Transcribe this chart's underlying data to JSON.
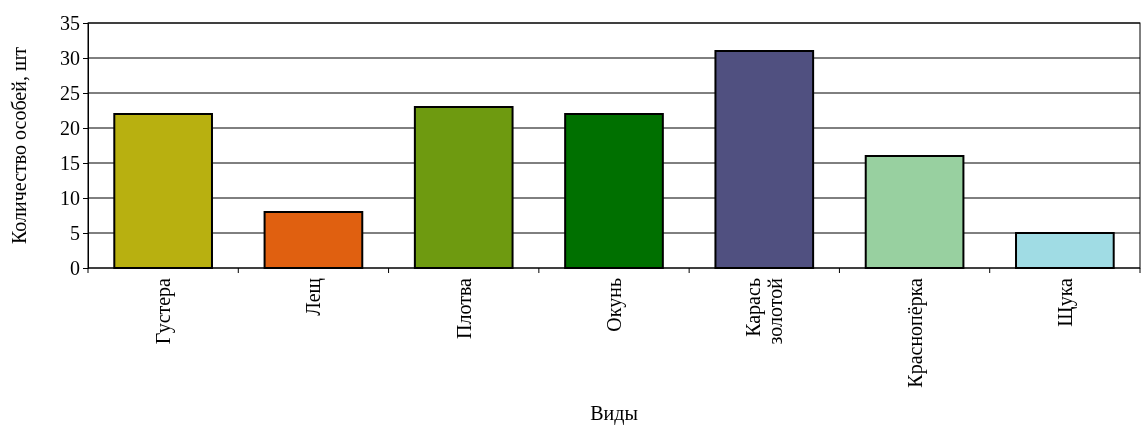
{
  "chart_data": {
    "type": "bar",
    "xlabel": "Виды",
    "ylabel": "Количество особей, шт",
    "categories": [
      "Густера",
      "Лещ",
      "Плотва",
      "Окунь",
      "Карась золотой",
      "Краснопёрка",
      "Щука"
    ],
    "values": [
      22,
      8,
      23,
      22,
      31,
      16,
      5
    ],
    "colors": [
      "#b8b010",
      "#e06010",
      "#6e9a10",
      "#007000",
      "#505080",
      "#98d0a0",
      "#a0dce4"
    ],
    "ylim": [
      0,
      35
    ],
    "yticks": [
      0,
      5,
      10,
      15,
      20,
      25,
      30,
      35
    ],
    "grid": "y"
  }
}
